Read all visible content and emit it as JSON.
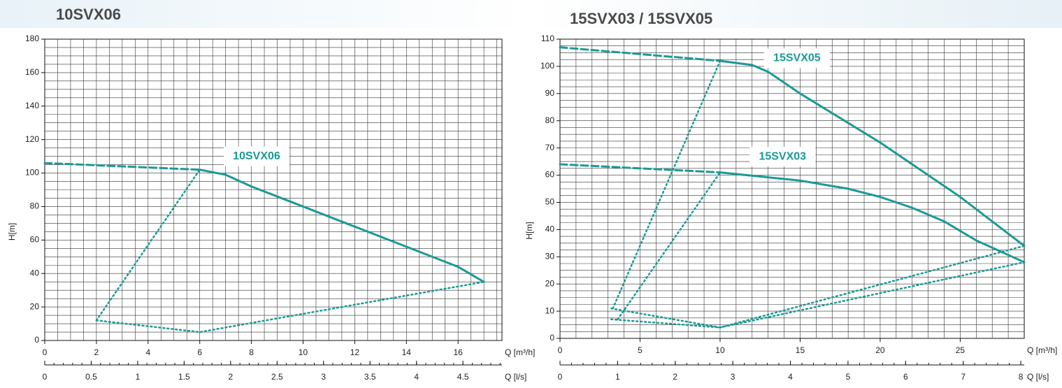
{
  "chart_data": [
    {
      "type": "line",
      "title": "10SVX06",
      "x_label": "Q [m³/h]",
      "y_label": "H[m]",
      "x2_label": "Q [l/s]",
      "xlim": [
        0,
        17.7
      ],
      "xticks": [
        0,
        2,
        4,
        6,
        8,
        10,
        12,
        14,
        16
      ],
      "ylim": [
        0,
        180
      ],
      "yticks": [
        0,
        20,
        40,
        60,
        80,
        100,
        120,
        140,
        160,
        180
      ],
      "x2lim": [
        0,
        4.92
      ],
      "x2ticks": [
        0,
        0.5,
        1,
        1.5,
        2,
        2.5,
        3,
        3.5,
        4,
        4.5
      ],
      "xminor": 0.5,
      "yminor": 5,
      "grid": true,
      "color": "#1a9a96",
      "series": [
        {
          "style": "solid",
          "x": [
            6,
            7,
            8,
            10,
            12,
            14,
            16,
            17
          ],
          "values": [
            102,
            99,
            92,
            80,
            68,
            56,
            44,
            35
          ]
        },
        {
          "style": "dashed",
          "x": [
            0,
            6
          ],
          "values": [
            106,
            102
          ]
        },
        {
          "style": "dotted",
          "x": [
            2,
            6
          ],
          "values": [
            12,
            102
          ]
        },
        {
          "style": "dotted",
          "x": [
            2,
            6,
            17
          ],
          "values": [
            12,
            5,
            35
          ]
        }
      ],
      "annotations": [
        {
          "text": "10SVX06",
          "x": 8.2,
          "y": 110
        }
      ]
    },
    {
      "type": "line",
      "title": "15SVX03 / 15SVX05",
      "x_label": "Q [m³/h]",
      "y_label": "H[m]",
      "x2_label": "Q [l/s]",
      "xlim": [
        0,
        29
      ],
      "xticks": [
        0,
        5,
        10,
        15,
        20,
        25
      ],
      "ylim": [
        0,
        110
      ],
      "yticks": [
        0,
        10,
        20,
        30,
        40,
        50,
        60,
        70,
        80,
        90,
        100,
        110
      ],
      "x2lim": [
        0,
        8.06
      ],
      "x2ticks": [
        0,
        1,
        2,
        3,
        4,
        5,
        6,
        7,
        8
      ],
      "xminor": 1,
      "yminor": 2.5,
      "grid": true,
      "color": "#1a9a96",
      "series": [
        {
          "style": "solid",
          "x": [
            10,
            12,
            13,
            15,
            20,
            25,
            29
          ],
          "values": [
            102,
            100.5,
            98,
            90,
            72,
            52,
            34
          ]
        },
        {
          "style": "dashed",
          "x": [
            0,
            10
          ],
          "values": [
            107,
            102
          ]
        },
        {
          "style": "solid",
          "x": [
            10,
            15,
            18,
            20,
            22,
            24,
            26,
            29
          ],
          "values": [
            61,
            58,
            55,
            52,
            48,
            43,
            36,
            28
          ]
        },
        {
          "style": "dashed",
          "x": [
            0,
            10
          ],
          "values": [
            64,
            61
          ]
        },
        {
          "style": "dotted",
          "x": [
            3.3,
            10
          ],
          "values": [
            11,
            102
          ]
        },
        {
          "style": "dotted",
          "x": [
            3.6,
            10
          ],
          "values": [
            7,
            61
          ]
        },
        {
          "style": "dotted",
          "x": [
            3.2,
            10,
            29
          ],
          "values": [
            11,
            4,
            34
          ]
        },
        {
          "style": "dotted",
          "x": [
            3.2,
            10,
            29
          ],
          "values": [
            7,
            4,
            28
          ]
        }
      ],
      "annotations": [
        {
          "text": "15SVX05",
          "x": 14.8,
          "y": 103
        },
        {
          "text": "15SVX03",
          "x": 13.9,
          "y": 66.8
        }
      ]
    }
  ]
}
